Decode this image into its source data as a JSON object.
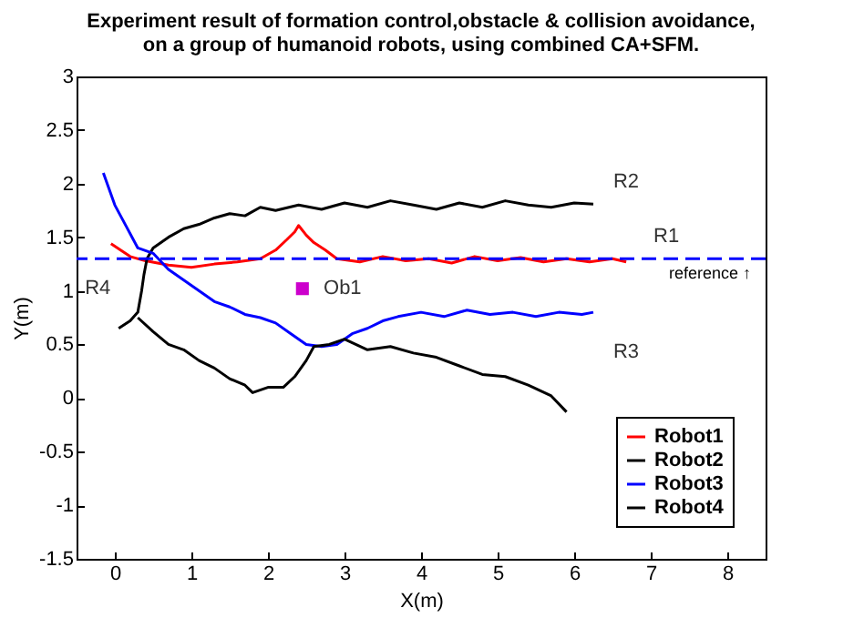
{
  "chart_data": {
    "type": "line",
    "title": [
      "Experiment result of formation control,obstacle & collision avoidance,",
      "on a group of humanoid robots, using combined CA+SFM."
    ],
    "xlabel": "X(m)",
    "ylabel": "Y(m)",
    "xlim": [
      -0.5,
      8.5
    ],
    "ylim": [
      -1.5,
      3
    ],
    "xticks": [
      0,
      1,
      2,
      3,
      4,
      5,
      6,
      7,
      8
    ],
    "yticks": [
      -1.5,
      -1,
      -0.5,
      0,
      0.5,
      1,
      1.5,
      2,
      2.5,
      3
    ],
    "legend": "bottom right",
    "marker": "none",
    "line_style": "solid",
    "series": [
      {
        "name": "Robot1",
        "color": "#ff0000",
        "x": [
          -0.05,
          0.2,
          0.4,
          0.7,
          1,
          1.3,
          1.6,
          1.9,
          2.1,
          2.25,
          2.35,
          2.4,
          2.5,
          2.6,
          2.75,
          2.9,
          3.2,
          3.5,
          3.8,
          4.1,
          4.4,
          4.7,
          5,
          5.3,
          5.6,
          5.9,
          6.2,
          6.5,
          6.68
        ],
        "values": [
          1.44,
          1.32,
          1.28,
          1.24,
          1.22,
          1.25,
          1.27,
          1.3,
          1.38,
          1.48,
          1.55,
          1.61,
          1.52,
          1.45,
          1.38,
          1.3,
          1.27,
          1.32,
          1.28,
          1.3,
          1.26,
          1.32,
          1.28,
          1.31,
          1.27,
          1.3,
          1.27,
          1.3,
          1.27
        ]
      },
      {
        "name": "Robot2",
        "color": "#000000",
        "x": [
          0.05,
          0.2,
          0.3,
          0.35,
          0.38,
          0.42,
          0.5,
          0.7,
          0.9,
          1.1,
          1.3,
          1.5,
          1.7,
          1.9,
          2.1,
          2.4,
          2.7,
          3,
          3.3,
          3.6,
          3.9,
          4.2,
          4.5,
          4.8,
          5.1,
          5.4,
          5.7,
          6,
          6.25
        ],
        "values": [
          0.65,
          0.72,
          0.8,
          1,
          1.15,
          1.3,
          1.4,
          1.5,
          1.58,
          1.62,
          1.68,
          1.72,
          1.7,
          1.78,
          1.75,
          1.8,
          1.76,
          1.82,
          1.78,
          1.84,
          1.8,
          1.76,
          1.82,
          1.78,
          1.84,
          1.8,
          1.78,
          1.82,
          1.81
        ]
      },
      {
        "name": "Robot3",
        "color": "#0000ff",
        "x": [
          -0.15,
          0,
          0.15,
          0.3,
          0.5,
          0.7,
          0.9,
          1.1,
          1.3,
          1.5,
          1.7,
          1.9,
          2.1,
          2.3,
          2.5,
          2.7,
          2.9,
          3.1,
          3.3,
          3.5,
          3.7,
          4,
          4.3,
          4.6,
          4.9,
          5.2,
          5.5,
          5.8,
          6.1,
          6.25
        ],
        "values": [
          2.1,
          1.8,
          1.6,
          1.4,
          1.35,
          1.2,
          1.1,
          1.0,
          0.9,
          0.85,
          0.78,
          0.75,
          0.7,
          0.6,
          0.5,
          0.48,
          0.5,
          0.6,
          0.65,
          0.72,
          0.76,
          0.8,
          0.76,
          0.82,
          0.78,
          0.8,
          0.76,
          0.8,
          0.78,
          0.8
        ]
      },
      {
        "name": "Robot4",
        "color": "#000000",
        "x": [
          0.3,
          0.5,
          0.7,
          0.9,
          1.1,
          1.3,
          1.5,
          1.7,
          1.8,
          2,
          2.2,
          2.35,
          2.5,
          2.6,
          2.8,
          3,
          3.3,
          3.6,
          3.9,
          4.2,
          4.5,
          4.8,
          5.1,
          5.4,
          5.7,
          5.9
        ],
        "values": [
          0.75,
          0.62,
          0.5,
          0.45,
          0.35,
          0.28,
          0.18,
          0.12,
          0.05,
          0.1,
          0.1,
          0.2,
          0.35,
          0.48,
          0.5,
          0.55,
          0.45,
          0.48,
          0.42,
          0.38,
          0.3,
          0.22,
          0.2,
          0.12,
          0.02,
          -0.13
        ]
      },
      {
        "type": "scatter",
        "marker": "square",
        "color": "#cc00cc",
        "x": [
          2.45
        ],
        "values": [
          1.02
        ]
      }
    ],
    "ref_lines": [
      {
        "axis": "y",
        "value": 1.3,
        "label": "reference ↑",
        "color": "#0000ff",
        "line_style": "dashed"
      }
    ],
    "annotations": [
      {
        "text": "R1",
        "x": 6.68,
        "y": 1.27
      },
      {
        "text": "R2",
        "x": 6.25,
        "y": 1.81
      },
      {
        "text": "R3",
        "x": 6.25,
        "y": 0.8
      },
      {
        "text": "R4",
        "x": 0.3,
        "y": 0.75
      },
      {
        "text": "Ob1",
        "x": 2.45,
        "y": 1.02
      }
    ]
  }
}
